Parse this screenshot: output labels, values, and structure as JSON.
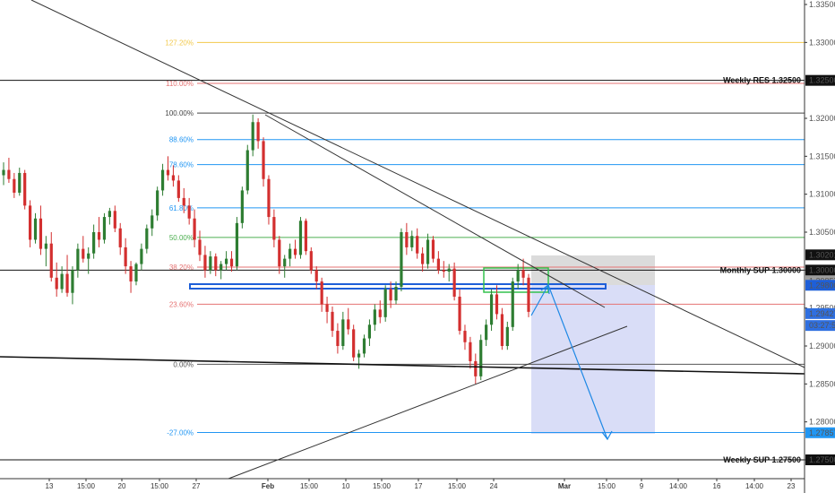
{
  "chart_data": {
    "type": "candlestick",
    "y_axis": {
      "range": [
        1.2715,
        1.3358
      ],
      "ticks": [
        "1.33500",
        "1.33000",
        "1.32000",
        "1.31500",
        "1.31000",
        "1.30500",
        "1.30000",
        "1.29500",
        "1.29000",
        "1.28500",
        "1.28000",
        "1.27500"
      ],
      "tick_values": [
        1.335,
        1.33,
        1.32,
        1.315,
        1.31,
        1.305,
        1.3,
        1.295,
        1.29,
        1.285,
        1.28,
        1.275
      ]
    },
    "x_axis": {
      "ticks": [
        "13",
        "15:00",
        "20",
        "15:00",
        "27",
        "Feb",
        "15:00",
        "10",
        "15:00",
        "17",
        "15:00",
        "24",
        "Mar",
        "15:00",
        "9",
        "14:00",
        "16",
        "14:00",
        "23"
      ],
      "bold_ticks": [
        "Feb",
        "Mar"
      ]
    },
    "price_boxes": [
      {
        "label": "1.32500",
        "value": 1.325,
        "color": "#111111",
        "text_color": "#ffffff"
      },
      {
        "label": "1.30201",
        "value": 1.30201,
        "color": "#111111",
        "text_color": "#ffffff"
      },
      {
        "label": "1.30000",
        "value": 1.3,
        "color": "#111111",
        "text_color": "#ffffff"
      },
      {
        "label": "1.29857",
        "value": 1.29857,
        "color": "#9e9e9e",
        "text_color": "#ffffff"
      },
      {
        "label": "1.29800",
        "value": 1.298,
        "color": "#1e5fd8",
        "text_color": "#ffffff"
      },
      {
        "label": "1.29427",
        "value": 1.29427,
        "color": "#2f6fe0",
        "text_color": "#ffffff"
      },
      {
        "label": "03:27:54",
        "value": 1.2927,
        "color": "#2f6fe0",
        "text_color": "#ffffff"
      },
      {
        "label": "1.27857",
        "value": 1.27857,
        "color": "#2196f3",
        "text_color": "#ffffff"
      },
      {
        "label": "1.27500",
        "value": 1.275,
        "color": "#111111",
        "text_color": "#ffffff"
      }
    ],
    "fib_levels": [
      {
        "label": "127.20%",
        "value": 1.33,
        "color": "#f2c94c"
      },
      {
        "label": "110.00%",
        "value": 1.3246,
        "color": "#e57373"
      },
      {
        "label": "100.00%",
        "value": 1.3207,
        "color": "#444444"
      },
      {
        "label": "88.60%",
        "value": 1.3172,
        "color": "#2196f3"
      },
      {
        "label": "78.60%",
        "value": 1.3139,
        "color": "#2196f3"
      },
      {
        "label": "61.80%",
        "value": 1.3082,
        "color": "#2196f3"
      },
      {
        "label": "50.00%",
        "value": 1.3043,
        "color": "#4caf50"
      },
      {
        "label": "38.20%",
        "value": 1.3004,
        "color": "#e57373"
      },
      {
        "label": "23.60%",
        "value": 1.2955,
        "color": "#e57373"
      },
      {
        "label": "0.00%",
        "value": 1.2876,
        "color": "#555555"
      },
      {
        "label": "-27.00%",
        "value": 1.2786,
        "color": "#2196f3"
      }
    ],
    "levels": [
      {
        "label": "Weekly RES 1.32500",
        "value": 1.325,
        "color": "#111111"
      },
      {
        "label": "Monthly SUP 1.30000",
        "value": 1.3,
        "color": "#111111"
      },
      {
        "label": "Weekly SUP 1.27500",
        "value": 1.275,
        "color": "#111111"
      }
    ],
    "candles": [
      [
        1.3125,
        1.3142,
        1.3112,
        1.3132
      ],
      [
        1.3132,
        1.3148,
        1.3115,
        1.312
      ],
      [
        1.312,
        1.3128,
        1.3095,
        1.3102
      ],
      [
        1.3102,
        1.3135,
        1.3098,
        1.3128
      ],
      [
        1.3128,
        1.3132,
        1.308,
        1.3085
      ],
      [
        1.3085,
        1.3092,
        1.303,
        1.304
      ],
      [
        1.304,
        1.3075,
        1.3035,
        1.3068
      ],
      [
        1.3068,
        1.3085,
        1.302,
        1.3028
      ],
      [
        1.3028,
        1.3045,
        1.3005,
        1.3035
      ],
      [
        1.3035,
        1.305,
        1.2985,
        1.299
      ],
      [
        1.299,
        1.301,
        1.2965,
        1.2975
      ],
      [
        1.2975,
        1.3005,
        1.297,
        1.2995
      ],
      [
        1.2995,
        1.302,
        1.2965,
        1.297
      ],
      [
        1.297,
        1.3005,
        1.2955,
        1.3
      ],
      [
        1.3,
        1.3035,
        1.299,
        1.3028
      ],
      [
        1.3028,
        1.3045,
        1.301,
        1.3015
      ],
      [
        1.3015,
        1.303,
        1.2995,
        1.3022
      ],
      [
        1.3022,
        1.306,
        1.3015,
        1.305
      ],
      [
        1.305,
        1.307,
        1.303,
        1.304
      ],
      [
        1.304,
        1.3075,
        1.3035,
        1.307
      ],
      [
        1.307,
        1.3082,
        1.306,
        1.3078
      ],
      [
        1.3078,
        1.3085,
        1.305,
        1.3055
      ],
      [
        1.3055,
        1.3062,
        1.302,
        1.303
      ],
      [
        1.303,
        1.3042,
        1.2995,
        1.3005
      ],
      [
        1.3005,
        1.3012,
        1.297,
        1.2985
      ],
      [
        1.2985,
        1.301,
        1.298,
        1.3008
      ],
      [
        1.3008,
        1.3035,
        1.3,
        1.3028
      ],
      [
        1.3028,
        1.306,
        1.3022,
        1.3055
      ],
      [
        1.3055,
        1.308,
        1.3045,
        1.3072
      ],
      [
        1.3072,
        1.311,
        1.3065,
        1.3105
      ],
      [
        1.3105,
        1.314,
        1.3098,
        1.3132
      ],
      [
        1.3132,
        1.315,
        1.3118,
        1.3125
      ],
      [
        1.3125,
        1.3138,
        1.311,
        1.3118
      ],
      [
        1.3118,
        1.3125,
        1.309,
        1.3095
      ],
      [
        1.3095,
        1.3108,
        1.3075,
        1.3085
      ],
      [
        1.3085,
        1.3095,
        1.306,
        1.3068
      ],
      [
        1.3068,
        1.308,
        1.303,
        1.304
      ],
      [
        1.304,
        1.3052,
        1.3012,
        1.302
      ],
      [
        1.302,
        1.3032,
        1.299,
        1.3
      ],
      [
        1.3,
        1.3025,
        1.2995,
        1.3018
      ],
      [
        1.3018,
        1.3022,
        1.2992,
        1.3
      ],
      [
        1.3,
        1.3012,
        1.2988,
        1.3008
      ],
      [
        1.3008,
        1.3025,
        1.3,
        1.3015
      ],
      [
        1.3015,
        1.3025,
        1.2998,
        1.3005
      ],
      [
        1.3005,
        1.307,
        1.3,
        1.3062
      ],
      [
        1.3062,
        1.311,
        1.3055,
        1.3105
      ],
      [
        1.3105,
        1.3165,
        1.31,
        1.3158
      ],
      [
        1.3158,
        1.3205,
        1.315,
        1.3195
      ],
      [
        1.3195,
        1.32,
        1.316,
        1.317
      ],
      [
        1.317,
        1.3175,
        1.311,
        1.312
      ],
      [
        1.312,
        1.3125,
        1.306,
        1.307
      ],
      [
        1.307,
        1.308,
        1.303,
        1.304
      ],
      [
        1.304,
        1.3045,
        1.2995,
        1.3005
      ],
      [
        1.3005,
        1.302,
        1.299,
        1.3015
      ],
      [
        1.3015,
        1.3035,
        1.3005,
        1.3028
      ],
      [
        1.3028,
        1.304,
        1.3015,
        1.302
      ],
      [
        1.302,
        1.307,
        1.3015,
        1.3065
      ],
      [
        1.3065,
        1.3068,
        1.302,
        1.3025
      ],
      [
        1.3025,
        1.303,
        1.2995,
        1.3
      ],
      [
        1.3,
        1.3005,
        1.2975,
        1.2985
      ],
      [
        1.2985,
        1.299,
        1.2945,
        1.2955
      ],
      [
        1.2955,
        1.2965,
        1.293,
        1.2945
      ],
      [
        1.2945,
        1.2952,
        1.2912,
        1.292
      ],
      [
        1.292,
        1.293,
        1.289,
        1.29
      ],
      [
        1.29,
        1.2945,
        1.2895,
        1.2935
      ],
      [
        1.2935,
        1.295,
        1.2915,
        1.2922
      ],
      [
        1.2922,
        1.2928,
        1.288,
        1.2885
      ],
      [
        1.2885,
        1.2895,
        1.287,
        1.289
      ],
      [
        1.289,
        1.2915,
        1.2885,
        1.291
      ],
      [
        1.291,
        1.2935,
        1.29,
        1.2928
      ],
      [
        1.2928,
        1.2955,
        1.292,
        1.2948
      ],
      [
        1.2948,
        1.296,
        1.293,
        1.2938
      ],
      [
        1.2938,
        1.298,
        1.2932,
        1.2975
      ],
      [
        1.2975,
        1.2985,
        1.295,
        1.296
      ],
      [
        1.296,
        1.2985,
        1.2955,
        1.2978
      ],
      [
        1.2978,
        1.3055,
        1.2972,
        1.305
      ],
      [
        1.305,
        1.3062,
        1.302,
        1.303
      ],
      [
        1.303,
        1.3052,
        1.3025,
        1.3045
      ],
      [
        1.3045,
        1.3055,
        1.3015,
        1.3022
      ],
      [
        1.3022,
        1.303,
        1.2998,
        1.3008
      ],
      [
        1.3008,
        1.3048,
        1.3002,
        1.304
      ],
      [
        1.304,
        1.3045,
        1.301,
        1.3015
      ],
      [
        1.3015,
        1.3025,
        1.2995,
        1.3
      ],
      [
        1.3,
        1.3012,
        1.299,
        1.2998
      ],
      [
        1.2998,
        1.3008,
        1.2985,
        1.3002
      ],
      [
        1.3002,
        1.301,
        1.296,
        1.2965
      ],
      [
        1.2965,
        1.2975,
        1.2915,
        1.292
      ],
      [
        1.292,
        1.2928,
        1.2895,
        1.2905
      ],
      [
        1.2905,
        1.2912,
        1.287,
        1.288
      ],
      [
        1.288,
        1.289,
        1.285,
        1.286
      ],
      [
        1.286,
        1.2915,
        1.2855,
        1.2908
      ],
      [
        1.2908,
        1.2935,
        1.29,
        1.2928
      ],
      [
        1.2928,
        1.2975,
        1.292,
        1.2968
      ],
      [
        1.2968,
        1.298,
        1.2935,
        1.2942
      ],
      [
        1.2942,
        1.295,
        1.2895,
        1.29
      ],
      [
        1.29,
        1.2932,
        1.2895,
        1.2925
      ],
      [
        1.2925,
        1.299,
        1.292,
        1.2985
      ],
      [
        1.2985,
        1.3008,
        1.2975,
        1.3
      ],
      [
        1.3,
        1.3015,
        1.298,
        1.299
      ],
      [
        1.299,
        1.2995,
        1.2938,
        1.2945
      ]
    ]
  }
}
